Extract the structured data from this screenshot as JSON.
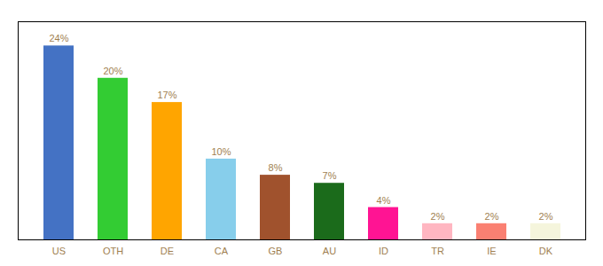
{
  "chart_data": {
    "type": "bar",
    "categories": [
      "US",
      "OTH",
      "DE",
      "CA",
      "GB",
      "AU",
      "ID",
      "TR",
      "IE",
      "DK"
    ],
    "values": [
      24,
      20,
      17,
      10,
      8,
      7,
      4,
      2,
      2,
      2
    ],
    "value_labels": [
      "24%",
      "20%",
      "17%",
      "10%",
      "8%",
      "7%",
      "4%",
      "2%",
      "2%",
      "2%"
    ],
    "colors": [
      "#4472C4",
      "#33CC33",
      "#FFA500",
      "#87CEEB",
      "#A0522D",
      "#1B6B1B",
      "#FF1493",
      "#FFB6C1",
      "#FA8072",
      "#F5F5DC"
    ],
    "ylim": [
      0,
      27
    ],
    "data_labels": true,
    "tick_labels": "x",
    "grid": false
  }
}
